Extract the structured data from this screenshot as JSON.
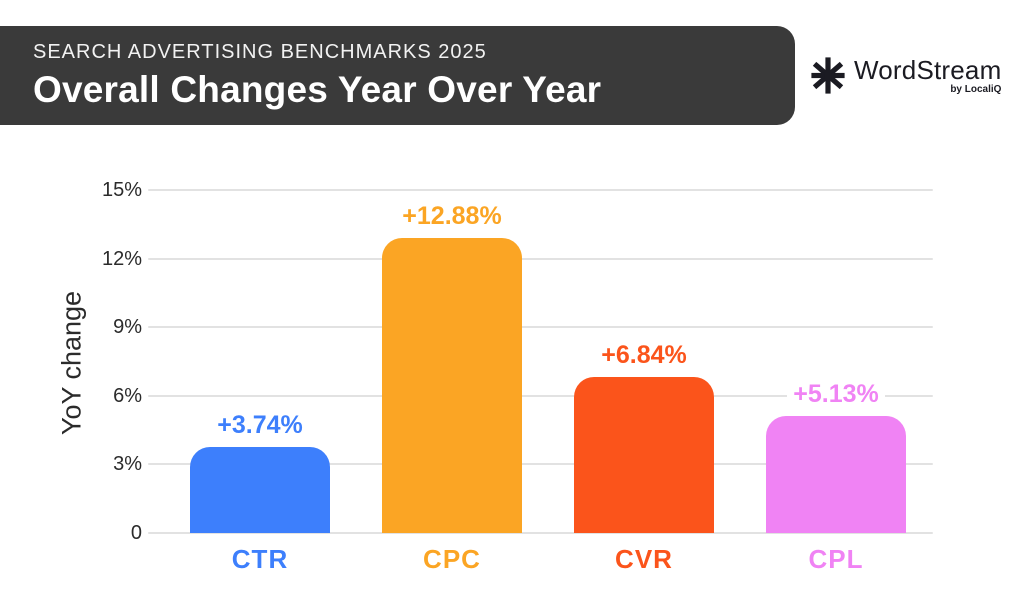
{
  "header": {
    "eyebrow": "SEARCH ADVERTISING BENCHMARKS 2025",
    "title": "Overall Changes Year Over Year",
    "bg_color": "#3A3A3A"
  },
  "logo": {
    "brand": "WordStream",
    "byline": "by LocaliQ",
    "mark": "asterisk-icon",
    "color": "#1B1B22"
  },
  "chart_data": {
    "type": "bar",
    "title": "Overall Changes Year Over Year",
    "categories": [
      "CTR",
      "CPC",
      "CVR",
      "CPL"
    ],
    "values": [
      3.74,
      12.88,
      6.84,
      5.13
    ],
    "value_labels": [
      "+3.74%",
      "+12.88%",
      "+6.84%",
      "+5.13%"
    ],
    "bar_colors": [
      "#3D7FFC",
      "#FBA524",
      "#FB541B",
      "#F083F4"
    ],
    "ylabel": "YoY change",
    "xlabel": "",
    "yticks": [
      0,
      3,
      6,
      9,
      12,
      15
    ],
    "ytick_labels": [
      "0",
      "3%",
      "6%",
      "9%",
      "12%",
      "15%"
    ],
    "ylim": [
      0,
      15
    ],
    "grid": true,
    "gridline_color": "#E2E2E2",
    "legend_position": "none"
  }
}
